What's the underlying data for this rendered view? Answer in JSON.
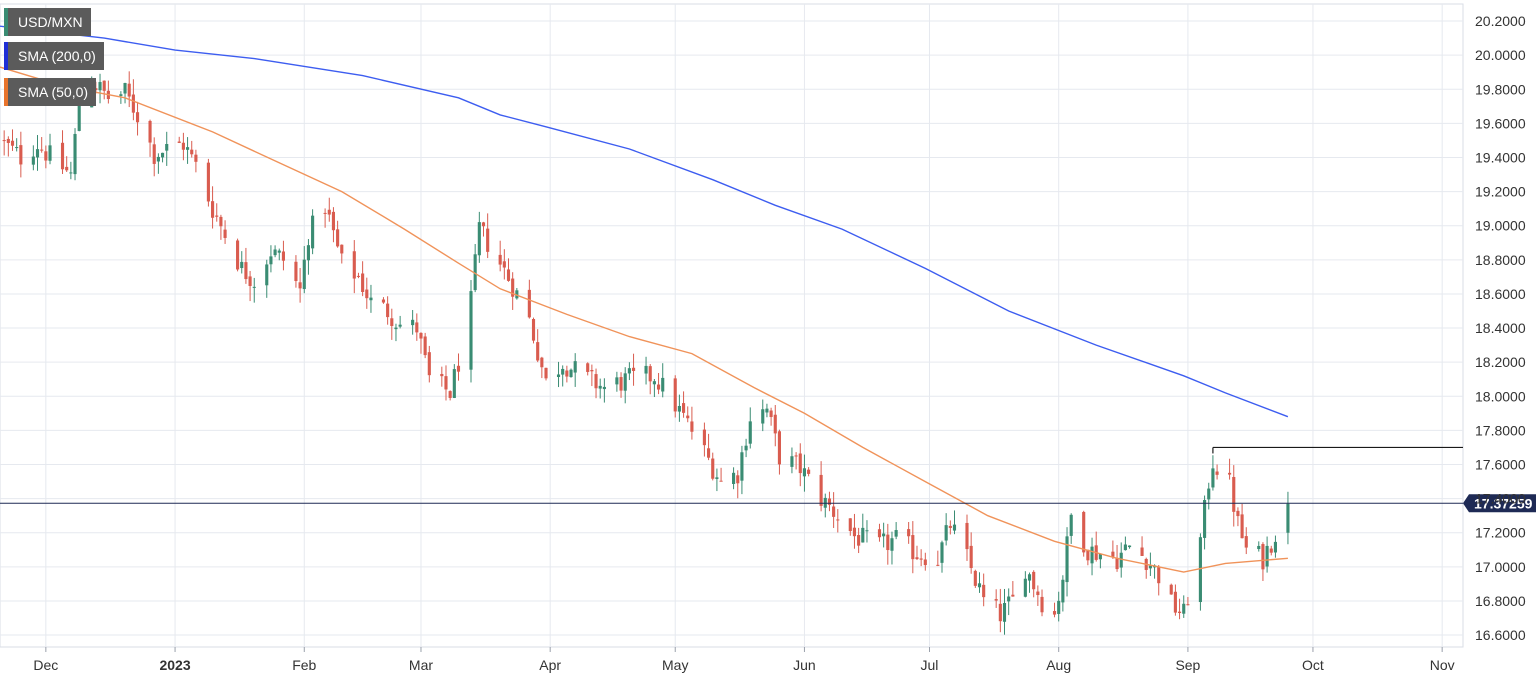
{
  "colors": {
    "up": "#3a8c73",
    "down": "#d95c4f",
    "sma200": "#3d5df0",
    "sma50": "#f0935a",
    "grid": "#e6e9ef",
    "axis_text": "#333333",
    "price_line": "#1e2a55",
    "price_badge": "#1e2a55",
    "resistance_line": "#1a1a1a"
  },
  "legend": [
    {
      "label": "USD/MXN",
      "color": "#3a8c73"
    },
    {
      "label": "SMA (200,0)",
      "color": "#1f2fd6"
    },
    {
      "label": "SMA (50,0)",
      "color": "#e8742c"
    }
  ],
  "chart_data": {
    "type": "candlestick",
    "title": "",
    "symbol": "USD/MXN",
    "x_tick_labels": [
      "Dec",
      "2023",
      "Feb",
      "Mar",
      "Apr",
      "May",
      "Jun",
      "Jul",
      "Aug",
      "Sep",
      "Oct",
      "Nov"
    ],
    "x_tick_dates": [
      "2022-12-01",
      "2023-01-01",
      "2023-02-01",
      "2023-03-01",
      "2023-04-01",
      "2023-05-01",
      "2023-06-01",
      "2023-07-01",
      "2023-08-01",
      "2023-09-01",
      "2023-10-01",
      "2023-11-01"
    ],
    "x_range": [
      "2022-11-20",
      "2023-11-06"
    ],
    "y_tick_labels": [
      "20.2000",
      "20.0000",
      "19.8000",
      "19.6000",
      "19.4000",
      "19.2000",
      "19.0000",
      "18.8000",
      "18.6000",
      "18.4000",
      "18.2000",
      "18.0000",
      "17.8000",
      "17.6000",
      "17.4000",
      "17.2000",
      "17.0000",
      "16.8000",
      "16.6000"
    ],
    "ylim": [
      16.53,
      20.3
    ],
    "last_price": 17.37259,
    "last_price_label": "17.37259",
    "resistance_level": 17.7,
    "resistance_start": "2023-09-07",
    "close_anchors": [
      [
        "2022-11-20",
        19.5
      ],
      [
        "2022-11-25",
        19.4
      ],
      [
        "2022-11-29",
        19.48
      ],
      [
        "2022-12-03",
        19.38
      ],
      [
        "2022-12-07",
        19.3
      ],
      [
        "2022-12-09",
        19.72
      ],
      [
        "2022-12-12",
        19.85
      ],
      [
        "2022-12-16",
        19.75
      ],
      [
        "2022-12-20",
        19.78
      ],
      [
        "2022-12-23",
        19.65
      ],
      [
        "2022-12-27",
        19.42
      ],
      [
        "2022-12-30",
        19.45
      ],
      [
        "2023-01-03",
        19.48
      ],
      [
        "2023-01-06",
        19.35
      ],
      [
        "2023-01-10",
        19.1
      ],
      [
        "2023-01-13",
        18.95
      ],
      [
        "2023-01-17",
        18.75
      ],
      [
        "2023-01-20",
        18.68
      ],
      [
        "2023-01-24",
        18.85
      ],
      [
        "2023-01-27",
        18.8
      ],
      [
        "2023-01-31",
        18.62
      ],
      [
        "2023-02-02",
        18.95
      ],
      [
        "2023-02-06",
        19.12
      ],
      [
        "2023-02-10",
        18.78
      ],
      [
        "2023-02-14",
        18.7
      ],
      [
        "2023-02-17",
        18.55
      ],
      [
        "2023-02-21",
        18.5
      ],
      [
        "2023-02-24",
        18.42
      ],
      [
        "2023-02-28",
        18.4
      ],
      [
        "2023-03-03",
        18.1
      ],
      [
        "2023-03-08",
        18.02
      ],
      [
        "2023-03-10",
        18.2
      ],
      [
        "2023-03-13",
        18.55
      ],
      [
        "2023-03-15",
        18.98
      ],
      [
        "2023-03-20",
        18.78
      ],
      [
        "2023-03-23",
        18.65
      ],
      [
        "2023-03-27",
        18.45
      ],
      [
        "2023-03-31",
        18.08
      ],
      [
        "2023-04-04",
        18.2
      ],
      [
        "2023-04-10",
        18.1
      ],
      [
        "2023-04-14",
        18.05
      ],
      [
        "2023-04-20",
        18.1
      ],
      [
        "2023-04-26",
        18.12
      ],
      [
        "2023-05-01",
        17.95
      ],
      [
        "2023-05-05",
        17.8
      ],
      [
        "2023-05-12",
        17.5
      ],
      [
        "2023-05-16",
        17.55
      ],
      [
        "2023-05-19",
        17.88
      ],
      [
        "2023-05-23",
        17.92
      ],
      [
        "2023-05-26",
        17.65
      ],
      [
        "2023-05-31",
        17.58
      ],
      [
        "2023-06-05",
        17.4
      ],
      [
        "2023-06-09",
        17.3
      ],
      [
        "2023-06-13",
        17.18
      ],
      [
        "2023-06-19",
        17.12
      ],
      [
        "2023-06-23",
        17.16
      ],
      [
        "2023-06-28",
        17.08
      ],
      [
        "2023-07-03",
        17.05
      ],
      [
        "2023-07-06",
        17.25
      ],
      [
        "2023-07-10",
        17.05
      ],
      [
        "2023-07-14",
        16.8
      ],
      [
        "2023-07-18",
        16.72
      ],
      [
        "2023-07-21",
        16.8
      ],
      [
        "2023-07-24",
        17.0
      ],
      [
        "2023-07-28",
        16.8
      ],
      [
        "2023-07-31",
        16.72
      ],
      [
        "2023-08-02",
        16.95
      ],
      [
        "2023-08-04",
        17.3
      ],
      [
        "2023-08-08",
        17.1
      ],
      [
        "2023-08-11",
        17.08
      ],
      [
        "2023-08-15",
        17.05
      ],
      [
        "2023-08-18",
        17.12
      ],
      [
        "2023-08-22",
        17.05
      ],
      [
        "2023-08-25",
        16.95
      ],
      [
        "2023-08-28",
        16.78
      ],
      [
        "2023-08-31",
        16.72
      ],
      [
        "2023-09-04",
        17.15
      ],
      [
        "2023-09-06",
        17.5
      ],
      [
        "2023-09-07",
        17.62
      ],
      [
        "2023-09-11",
        17.48
      ],
      [
        "2023-09-13",
        17.25
      ],
      [
        "2023-09-15",
        17.1
      ],
      [
        "2023-09-19",
        17.05
      ],
      [
        "2023-09-21",
        17.15
      ],
      [
        "2023-09-22",
        17.2
      ],
      [
        "2023-09-25",
        17.37
      ]
    ],
    "series": [
      {
        "name": "SMA (200,0)",
        "points": [
          [
            "2022-11-20",
            20.17
          ],
          [
            "2022-12-15",
            20.1
          ],
          [
            "2023-01-01",
            20.03
          ],
          [
            "2023-01-20",
            19.98
          ],
          [
            "2023-02-15",
            19.88
          ],
          [
            "2023-03-10",
            19.75
          ],
          [
            "2023-03-20",
            19.65
          ],
          [
            "2023-03-31",
            19.58
          ],
          [
            "2023-04-20",
            19.45
          ],
          [
            "2023-05-10",
            19.27
          ],
          [
            "2023-05-25",
            19.12
          ],
          [
            "2023-06-10",
            18.98
          ],
          [
            "2023-06-30",
            18.75
          ],
          [
            "2023-07-20",
            18.5
          ],
          [
            "2023-08-10",
            18.3
          ],
          [
            "2023-08-31",
            18.12
          ],
          [
            "2023-09-10",
            18.02
          ],
          [
            "2023-09-25",
            17.88
          ]
        ]
      },
      {
        "name": "SMA (50,0)",
        "points": [
          [
            "2022-11-20",
            19.93
          ],
          [
            "2022-12-05",
            19.82
          ],
          [
            "2022-12-20",
            19.75
          ],
          [
            "2023-01-10",
            19.55
          ],
          [
            "2023-01-25",
            19.38
          ],
          [
            "2023-02-10",
            19.2
          ],
          [
            "2023-02-25",
            18.98
          ],
          [
            "2023-03-10",
            18.78
          ],
          [
            "2023-03-20",
            18.63
          ],
          [
            "2023-04-05",
            18.48
          ],
          [
            "2023-04-20",
            18.35
          ],
          [
            "2023-05-05",
            18.25
          ],
          [
            "2023-05-20",
            18.05
          ],
          [
            "2023-06-01",
            17.9
          ],
          [
            "2023-06-15",
            17.7
          ],
          [
            "2023-06-30",
            17.5
          ],
          [
            "2023-07-15",
            17.3
          ],
          [
            "2023-07-31",
            17.15
          ],
          [
            "2023-08-15",
            17.05
          ],
          [
            "2023-08-31",
            16.97
          ],
          [
            "2023-09-10",
            17.02
          ],
          [
            "2023-09-25",
            17.05
          ]
        ]
      }
    ]
  }
}
